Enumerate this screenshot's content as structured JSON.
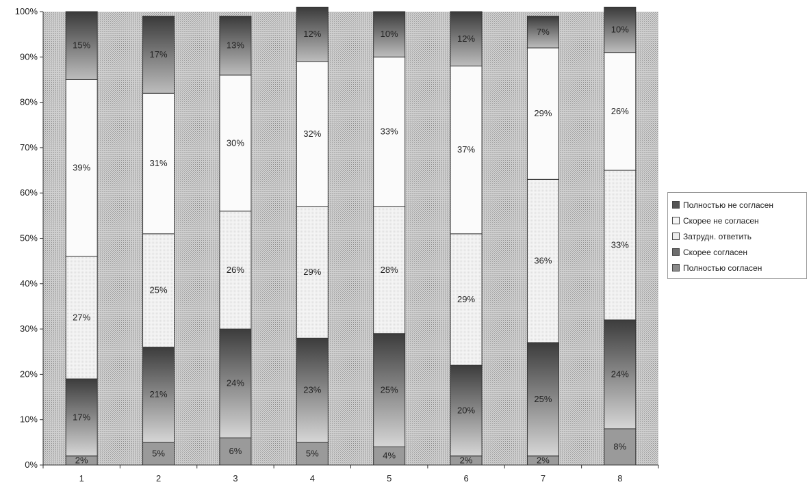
{
  "chart_data": {
    "type": "bar",
    "stacked": true,
    "percent_stacked": true,
    "categories": [
      "1",
      "2",
      "3",
      "4",
      "5",
      "6",
      "7",
      "8"
    ],
    "y_ticks": [
      "0%",
      "10%",
      "20%",
      "30%",
      "40%",
      "50%",
      "60%",
      "70%",
      "80%",
      "90%",
      "100%"
    ],
    "ylim": [
      0,
      100
    ],
    "grid": false,
    "legend_position": "right",
    "title": "",
    "xlabel": "",
    "ylabel": "",
    "series": [
      {
        "name": "Полностью согласен",
        "color": "#8a8a8a",
        "values": [
          2,
          5,
          6,
          5,
          4,
          2,
          2,
          8
        ],
        "labels": [
          "2%",
          "5%",
          "6%",
          "5%",
          "4%",
          "2%",
          "2%",
          "8%"
        ]
      },
      {
        "name": "Скорее согласен",
        "color": "#6e6e6e",
        "values": [
          17,
          21,
          24,
          23,
          25,
          20,
          25,
          24
        ],
        "labels": [
          "17%",
          "21%",
          "24%",
          "23%",
          "25%",
          "20%",
          "25%",
          "24%"
        ]
      },
      {
        "name": "Затрудн. ответить",
        "color": "#ececec",
        "values": [
          27,
          25,
          26,
          29,
          28,
          29,
          36,
          33
        ],
        "labels": [
          "27%",
          "25%",
          "26%",
          "29%",
          "28%",
          "29%",
          "36%",
          "33%"
        ]
      },
      {
        "name": "Скорее не согласен",
        "color": "#f5f5f5",
        "values": [
          39,
          31,
          30,
          32,
          33,
          37,
          29,
          26
        ],
        "labels": [
          "39%",
          "31%",
          "30%",
          "32%",
          "33%",
          "37%",
          "29%",
          "26%"
        ]
      },
      {
        "name": "Полностью не согласен",
        "color": "#555555",
        "values": [
          15,
          17,
          13,
          12,
          10,
          12,
          7,
          10
        ],
        "labels": [
          "15%",
          "17%",
          "13%",
          "12%",
          "10%",
          "12%",
          "7%",
          "10%"
        ]
      }
    ],
    "legend_order": [
      "Полностью не согласен",
      "Скорее не согласен",
      "Затрудн. ответить",
      "Скорее согласен",
      "Полностью согласен"
    ]
  }
}
